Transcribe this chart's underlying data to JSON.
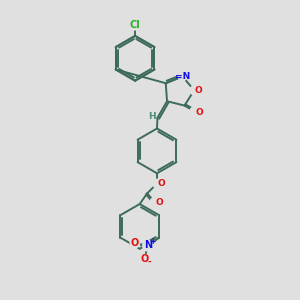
{
  "bg_color": "#e0e0e0",
  "bond_color": "#3d6b5a",
  "bond_width": 1.4,
  "atom_colors": {
    "O": "#e01010",
    "N": "#1010e0",
    "Cl": "#28b028",
    "H": "#4a8a7a",
    "C": "#3d6b5a"
  },
  "xlim": [
    0,
    10
  ],
  "ylim": [
    0,
    14
  ],
  "figsize": [
    3.0,
    3.0
  ],
  "dpi": 100
}
